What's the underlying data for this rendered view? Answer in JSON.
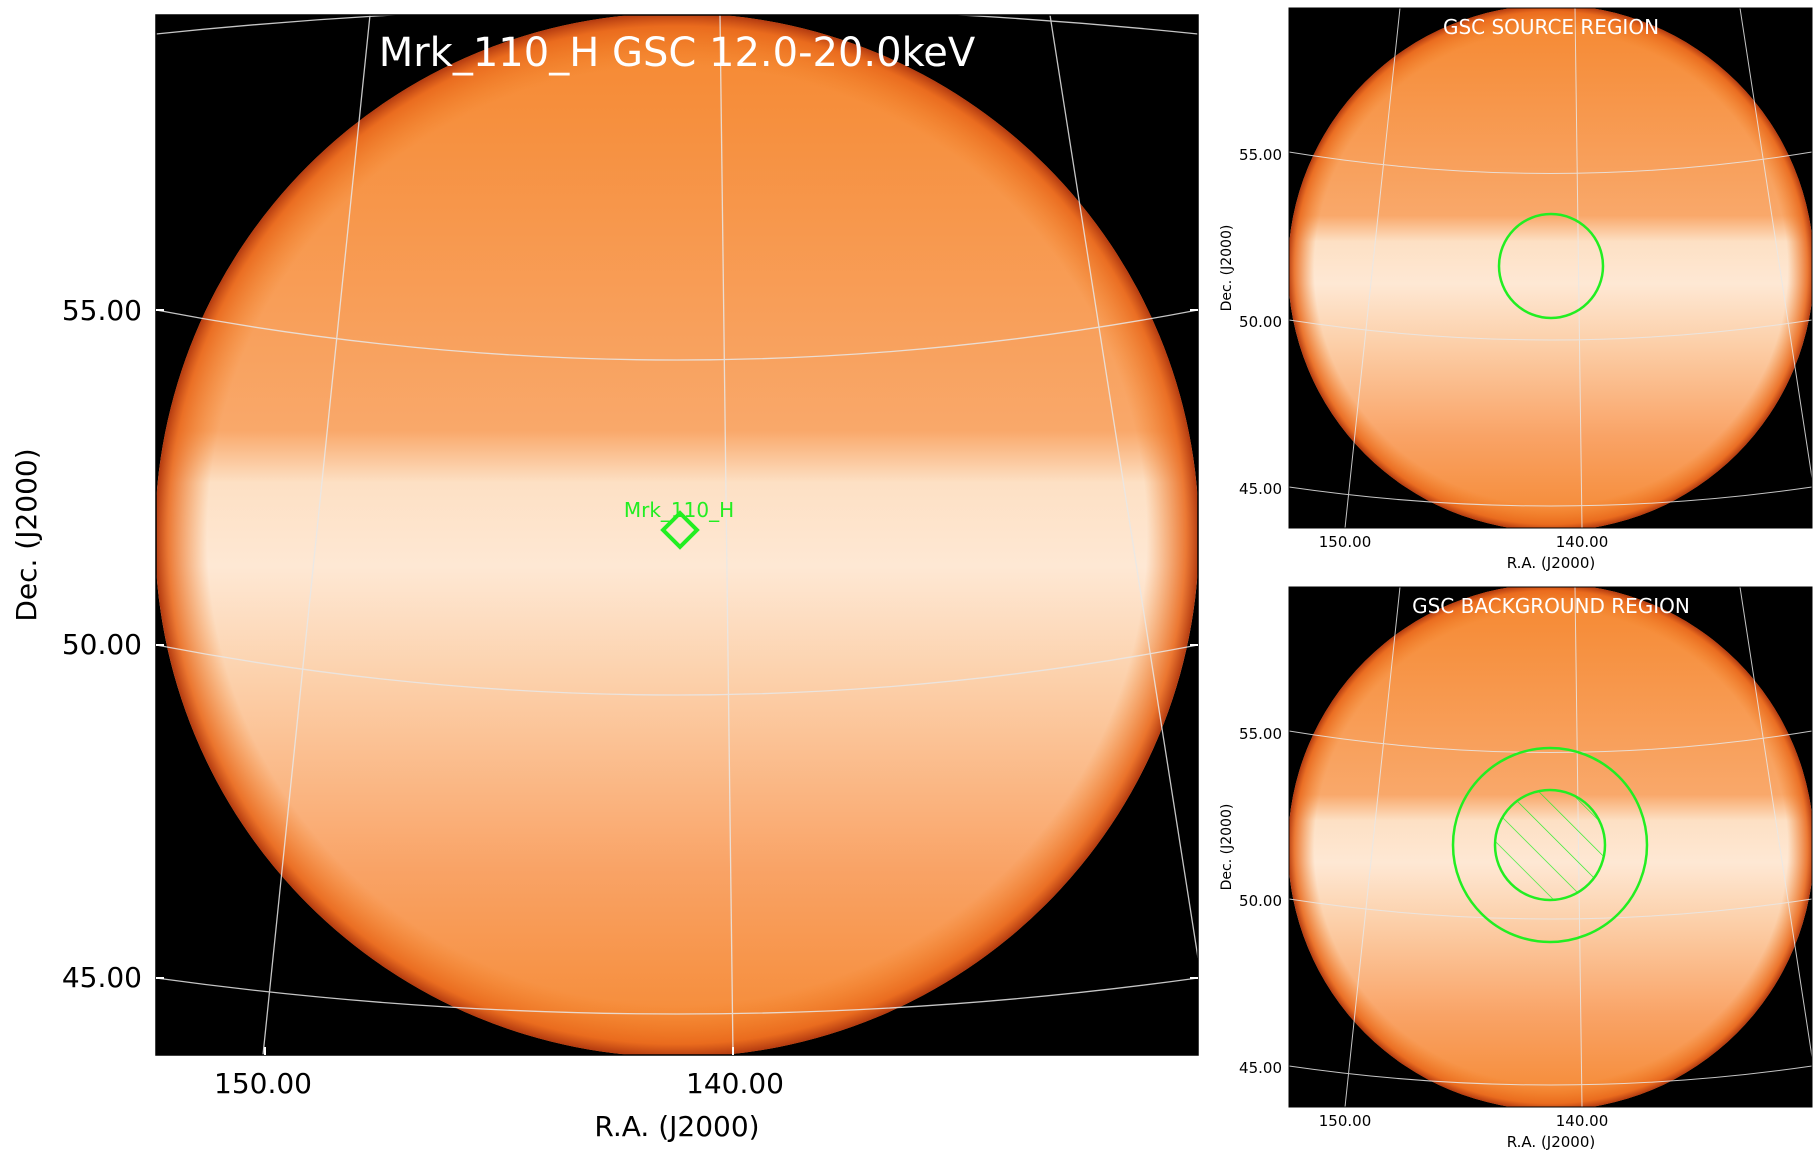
{
  "main_panel": {
    "title": "Mrk_110_H GSC 12.0-20.0keV",
    "xlabel": "R.A. (J2000)",
    "ylabel": "Dec. (J2000)",
    "x_ticks": [
      "150.00",
      "140.00"
    ],
    "y_ticks": [
      "55.00",
      "50.00",
      "45.00"
    ],
    "source_label": "Mrk_110_H"
  },
  "source_panel": {
    "title": "GSC SOURCE REGION",
    "xlabel": "R.A. (J2000)",
    "ylabel": "Dec. (J2000)",
    "x_ticks": [
      "150.00",
      "140.00"
    ],
    "y_ticks": [
      "55.00",
      "50.00",
      "45.00"
    ]
  },
  "background_panel": {
    "title": "GSC BACKGROUND REGION",
    "xlabel": "R.A. (J2000)",
    "ylabel": "Dec. (J2000)",
    "x_ticks": [
      "150.00",
      "140.00"
    ],
    "y_ticks": [
      "55.00",
      "50.00",
      "45.00"
    ]
  },
  "colors": {
    "region": "#22ee22",
    "disk_edge": "#f07a20",
    "disk_center": "#ffe2c4",
    "grid": "#e8e8e8",
    "sky_background": "#000000"
  },
  "chart_data": [
    {
      "type": "heatmap",
      "title": "Mrk_110_H GSC 12.0-20.0keV",
      "xlabel": "R.A. (J2000)",
      "ylabel": "Dec. (J2000)",
      "x_ticks": [
        150.0,
        140.0
      ],
      "y_ticks": [
        55.0,
        50.0,
        45.0
      ],
      "colormap": "orange-white (hot)",
      "grid": true,
      "source": {
        "name": "Mrk_110_H",
        "ra": 141.3,
        "dec": 52.3,
        "marker": "diamond"
      }
    },
    {
      "type": "heatmap",
      "title": "GSC SOURCE REGION",
      "xlabel": "R.A. (J2000)",
      "ylabel": "Dec. (J2000)",
      "x_ticks": [
        150.0,
        140.0
      ],
      "y_ticks": [
        55.0,
        50.0,
        45.0
      ],
      "grid": true,
      "region": {
        "shape": "circle",
        "center_ra": 141.3,
        "center_dec": 52.3
      }
    },
    {
      "type": "heatmap",
      "title": "GSC BACKGROUND REGION",
      "xlabel": "R.A. (J2000)",
      "ylabel": "Dec. (J2000)",
      "x_ticks": [
        150.0,
        140.0
      ],
      "y_ticks": [
        55.0,
        50.0,
        45.0
      ],
      "grid": true,
      "region": {
        "shape": "annulus",
        "excluded_inner": "hatched",
        "center_ra": 141.3,
        "center_dec": 52.3
      }
    }
  ]
}
